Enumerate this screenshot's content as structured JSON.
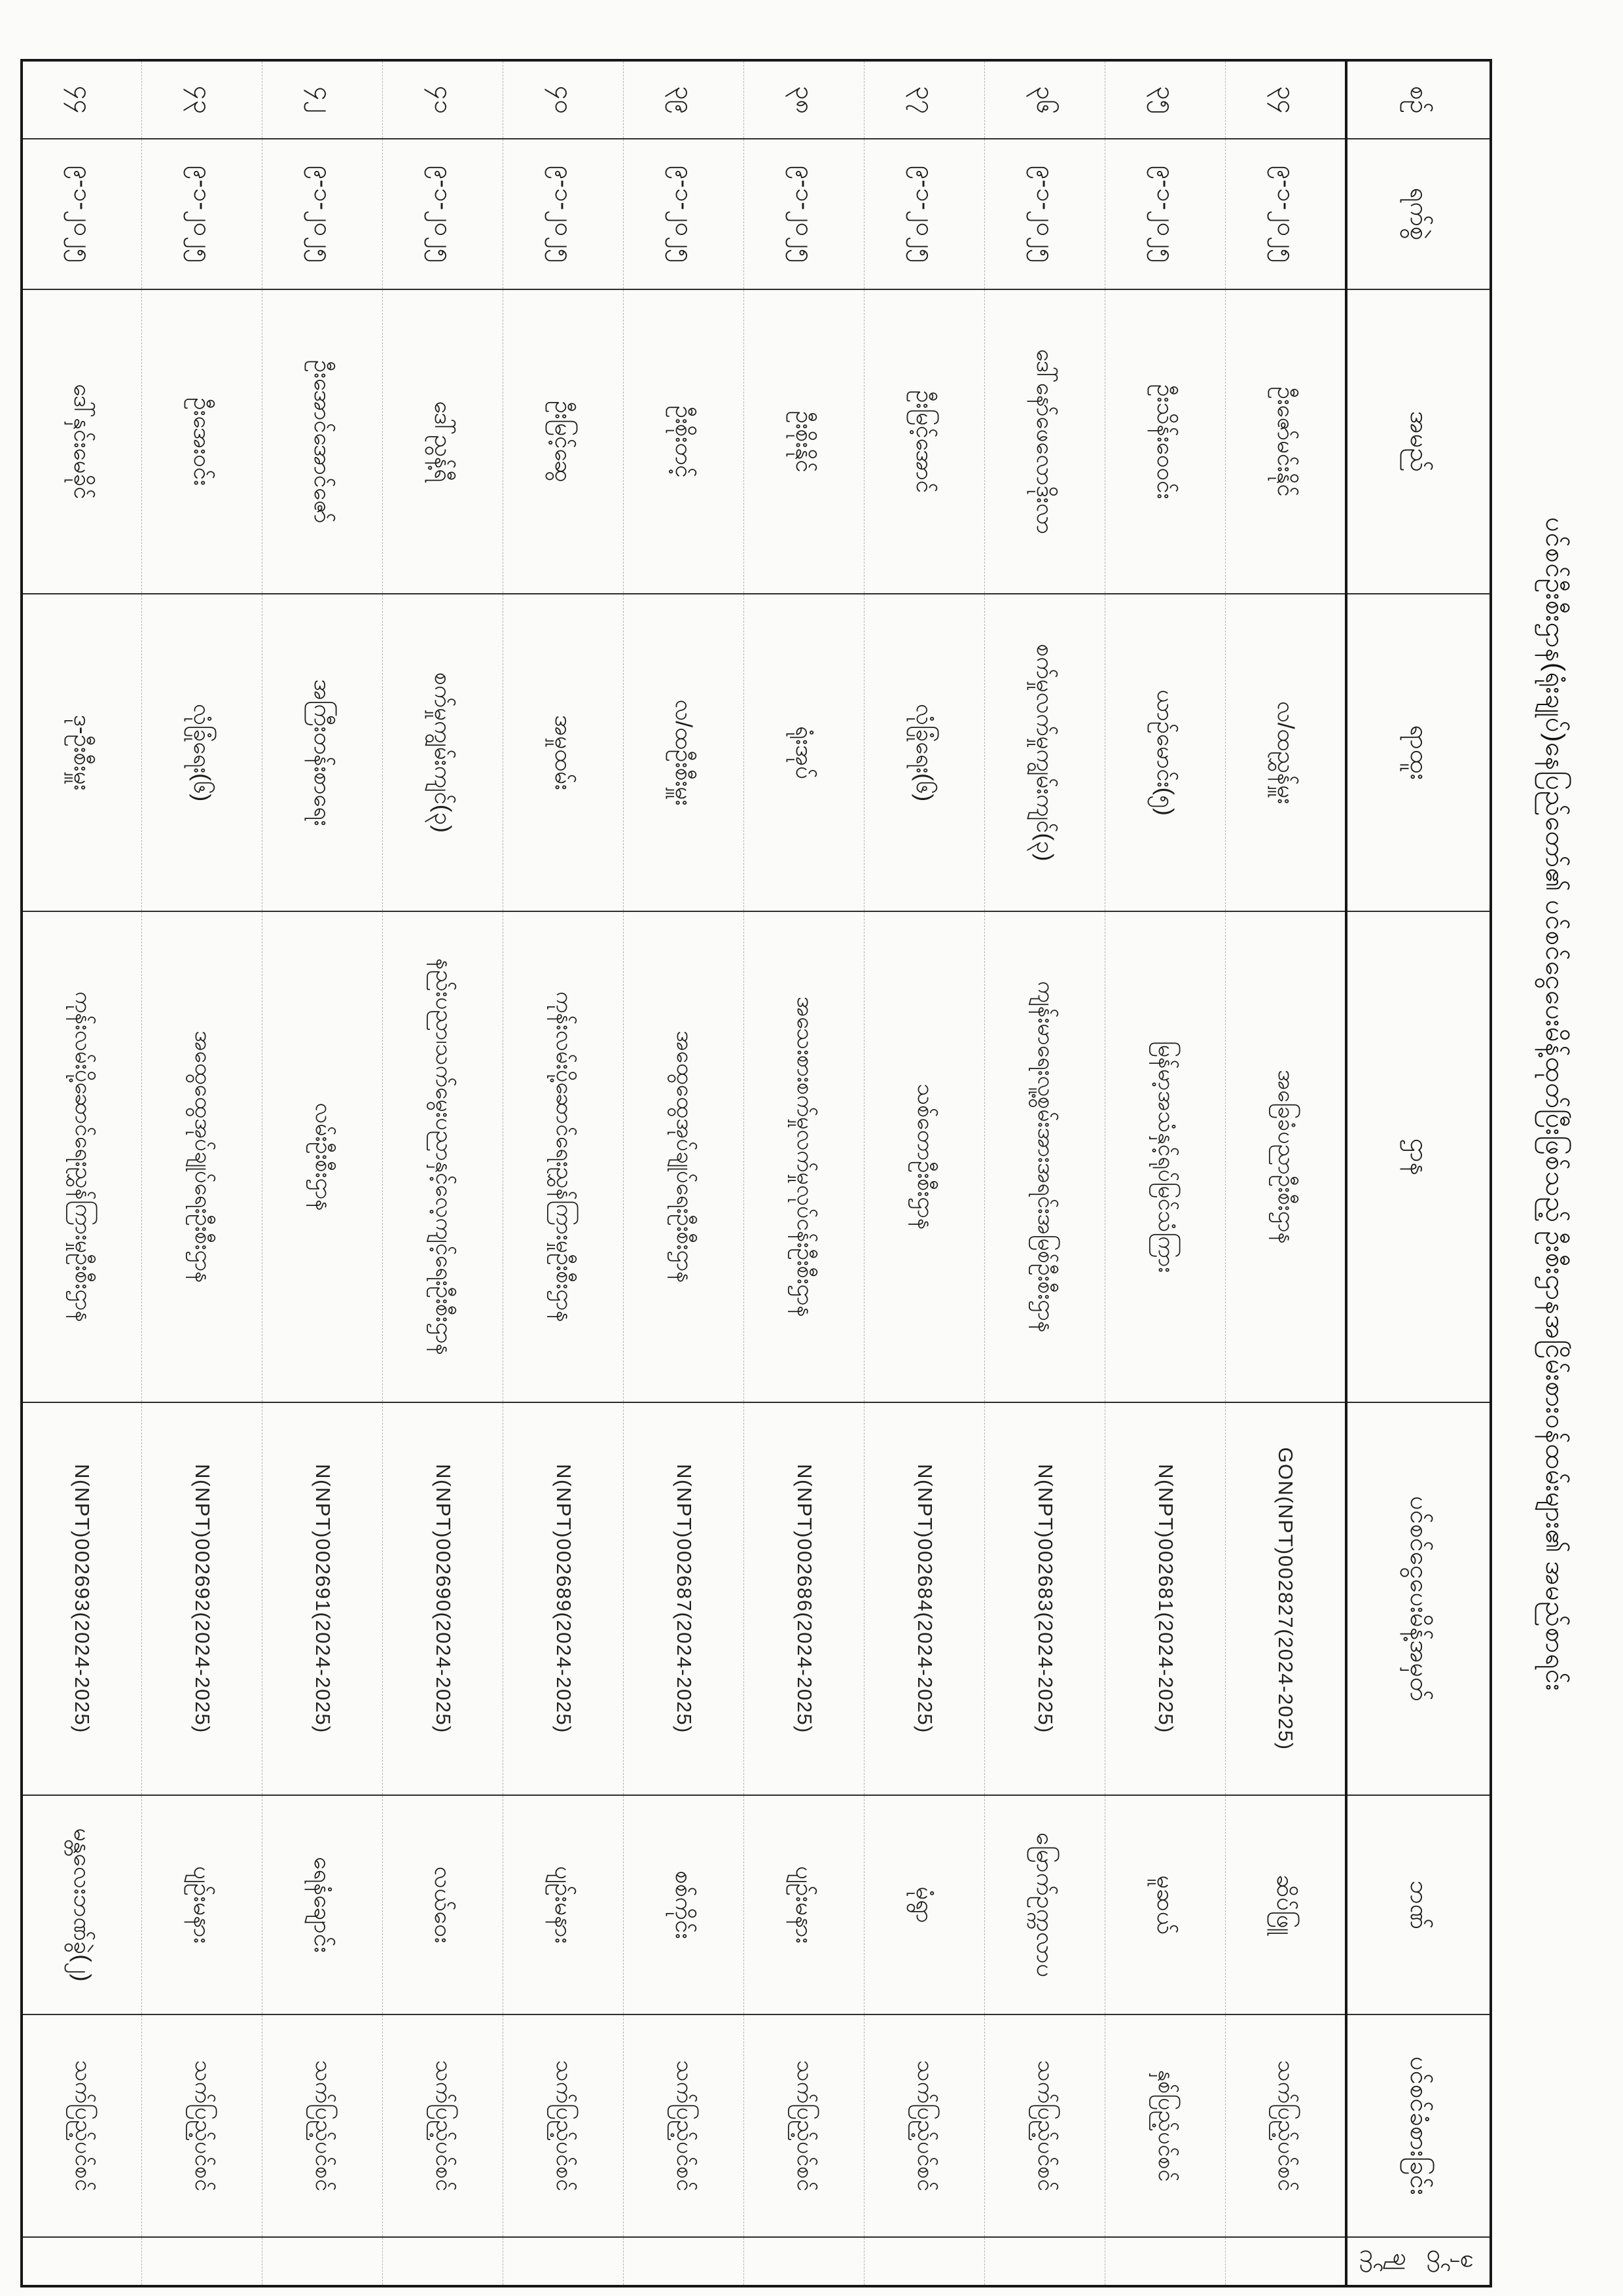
{
  "page": {
    "title": "ပင်စင်ဦးစီးဌာန(ရုံးချုပ်)နေပြည်တော်၏ ပင်စင်ငွေပေးမိန့်ထုတ်ပြီးဖြစ်သည့် ဦးစီးဌာနအငြိမ်းစားဝန်ထမ်းများ၏ အမည်စာရင်း"
  },
  "table": {
    "columns": [
      {
        "key": "no",
        "label": "စဉ်"
      },
      {
        "key": "date",
        "label": "ရက်စွဲ"
      },
      {
        "key": "name",
        "label": "အမည်"
      },
      {
        "key": "position",
        "label": "ရာထူး"
      },
      {
        "key": "dept",
        "label": "ဌာန"
      },
      {
        "key": "order_no",
        "label": "ပင်စင်ငွေပေးမိန့်အမှတ်"
      },
      {
        "key": "bank",
        "label": "ဘဏ်"
      },
      {
        "key": "type",
        "label": "ပင်စင်ခံစားခြင်း"
      },
      {
        "key": "remark",
        "label": "မှတ်ချက်"
      }
    ],
    "rows": [
      {
        "no": "၃၄",
        "date": "၉-၁-၂၀၂၅",
        "name": "ဦးဇော်မင်းနိုင်",
        "position": "လ/ထညွှန်မှူး",
        "dept": "အခြေခံပညာဦးစီးဌာန",
        "order_no": "GON(NPT)002827(2024-2025)",
        "bank": "ဆိပ်ဖြူ",
        "type": "သက်ပြည့်ပင်စင်",
        "remark": ""
      },
      {
        "no": "၃၅",
        "date": "၉-၁-၂၀၂၅",
        "name": "ဦးသိန်းဝေဝင်း",
        "position": "ယာဉ်မောင်း(၅)",
        "dept": "မြန်မာ့အသံနှင့်ရုပ်မြင်သံကြား",
        "order_no": "N(NPT)002681(2024-2025)",
        "bank": "မူဆယ်",
        "type": "နှစ်ပြည့်ပင်စင်",
        "remark": ""
      },
      {
        "no": "၃၆",
        "date": "၉-၁-၂၀၂၅",
        "name": "ဒေါ်နော်ဖေလောဒိုးလာ",
        "position": "စက်မှုလက်မှုကျွမ်းကျင်(၃)",
        "dept": "ကျန်းမာရေးလူ့စွမ်းအားအရင်းအမြစ်ဦးစီးဌာန",
        "order_no": "N(NPT)002683(2024-2025)",
        "bank": "မြောက်ဥက္ကလာပ",
        "type": "သက်ပြည့်ပင်စင်",
        "remark": ""
      },
      {
        "no": "၃၇",
        "date": "၉-၁-၂၀၂၅",
        "name": "ဦးမြင့်အောင်",
        "position": "လုံခြုံရေး(၆)",
        "dept": "သစ်တောဦးစီးဌာန",
        "order_no": "N(NPT)002684(2024-2025)",
        "bank": "မုံရွာ",
        "type": "သက်ပြည့်ပင်စင်",
        "remark": ""
      },
      {
        "no": "၃၈",
        "date": "၉-၁-၂၀၂၅",
        "name": "ဦးစိုးနိုင်",
        "position": "ရုံးအုပ်",
        "dept": "အသေးစားစက်မှုလက်မှုလုပ်ငန်းဦးစီးဌာန",
        "order_no": "N(NPT)002686(2024-2025)",
        "bank": "ပျဉ်းမနား",
        "type": "သက်ပြည့်ပင်စင်",
        "remark": ""
      },
      {
        "no": "၃၉",
        "date": "၉-၁-၂၀၂၅",
        "name": "ဦးစိုးတင့်",
        "position": "လ/ထဦးစီးမှူး",
        "dept": "အထွေထွေအုပ်ချုပ်ရေးဦးစီးဌာန",
        "order_no": "N(NPT)002687(2024-2025)",
        "bank": "စစ်ကိုင်း",
        "type": "သက်ပြည့်ပင်စင်",
        "remark": ""
      },
      {
        "no": "၄၀",
        "date": "၉-၁-၂၀၂၅",
        "name": "ဦးမြင့်ဆွေ",
        "position": "အမှုထမ်း",
        "dept": "ကုန်းလမ်းပို့ဆောင်ရေးညွှန်ကြားမှုဦးစီးဌာန",
        "order_no": "N(NPT)002689(2024-2025)",
        "bank": "ပျဉ်းမနား",
        "type": "သက်ပြည့်ပင်စင်",
        "remark": ""
      },
      {
        "no": "၄၁",
        "date": "၉-၁-၂၀၂၅",
        "name": "ဒေါ်ညွန့်ရီ",
        "position": "စက်မှုကျွမ်းကျင်(၃)",
        "dept": "နည်းပညာ၊သက်မွေးပညာနှင့်လေ့ကျင့်ရေးဦးစီးဌာန",
        "order_no": "N(NPT)002690(2024-2025)",
        "bank": "လယ်ဝေး",
        "type": "သက်ပြည့်ပင်စင်",
        "remark": ""
      },
      {
        "no": "၄၂",
        "date": "၉-၁-၂၀၂၅",
        "name": "ဦးအောင်အောင်ဇော်",
        "position": "အကြီးတန်းစာရေး",
        "dept": "လမ်းဦးစီးဌာန",
        "order_no": "N(NPT)002691(2024-2025)",
        "bank": "ရေနံချောင်း",
        "type": "သက်ပြည့်ပင်စင်",
        "remark": ""
      },
      {
        "no": "၄၃",
        "date": "၉-၁-၂၀၂၅",
        "name": "ဦးအေးဝင်း",
        "position": "လုံခြုံရေး(၆)",
        "dept": "အထွေထွေအုပ်ချုပ်ရေးဦးစီးဌာန",
        "order_no": "N(NPT)002692(2024-2025)",
        "bank": "ပျဉ်းမနား",
        "type": "သက်ပြည့်ပင်စင်",
        "remark": ""
      },
      {
        "no": "၄၄",
        "date": "၉-၁-၂၀၂၅",
        "name": "ဒေါ်နှင်းမေခိုင်",
        "position": "ဒု-ဦးစီးမှူး",
        "dept": "ကုန်းလမ်းပို့ဆောင်ရေးညွှန်ကြားမှုဦးစီးဌာန",
        "order_no": "N(NPT)002693(2024-2025)",
        "bank": "မန္တလေးဘဏ်ခွဲ(၂)",
        "type": "သက်ပြည့်ပင်စင်",
        "remark": ""
      }
    ]
  }
}
